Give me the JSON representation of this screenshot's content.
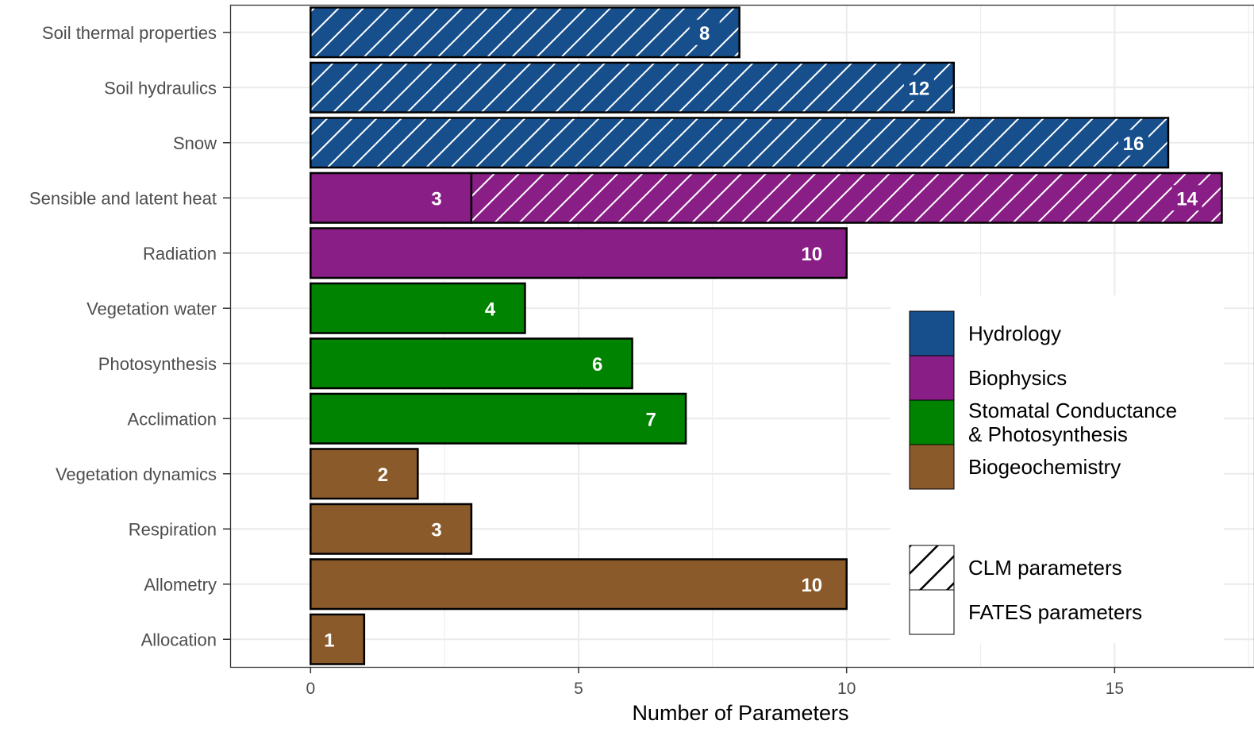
{
  "chart_data": {
    "type": "bar",
    "orientation": "horizontal",
    "stacked": true,
    "xlabel": "Number of Parameters",
    "ylabel": "",
    "xlim": [
      -1.5,
      17.6
    ],
    "xticks": [
      0,
      5,
      10,
      15
    ],
    "grid": true,
    "legend_position": "right",
    "categories": [
      "Soil thermal properties",
      "Soil hydraulics",
      "Snow",
      "Sensible and latent heat",
      "Radiation",
      "Vegetation water",
      "Photosynthesis",
      "Acclimation",
      "Vegetation dynamics",
      "Respiration",
      "Allometry",
      "Allocation"
    ],
    "groups": [
      "Hydrology",
      "Hydrology",
      "Hydrology",
      "Biophysics",
      "Biophysics",
      "Stomatal Conductance & Photosynthesis",
      "Stomatal Conductance & Photosynthesis",
      "Stomatal Conductance & Photosynthesis",
      "Biogeochemistry",
      "Biogeochemistry",
      "Biogeochemistry",
      "Biogeochemistry"
    ],
    "series": [
      {
        "name": "FATES parameters",
        "pattern": "none",
        "values": [
          0,
          0,
          0,
          3,
          10,
          4,
          6,
          7,
          2,
          3,
          10,
          1
        ]
      },
      {
        "name": "CLM parameters",
        "pattern": "hatched",
        "values": [
          8,
          12,
          16,
          14,
          0,
          0,
          0,
          0,
          0,
          0,
          0,
          0
        ]
      }
    ],
    "group_legend": [
      {
        "name": "Hydrology",
        "color": "#164f8c"
      },
      {
        "name": "Biophysics",
        "color": "#8a1e87"
      },
      {
        "name": "Stomatal Conductance & Photosynthesis",
        "color": "#008300"
      },
      {
        "name": "Biogeochemistry",
        "color": "#8b5a2b"
      }
    ],
    "legend_lines": {
      "Hydrology": [
        "Hydrology"
      ],
      "Biophysics": [
        "Biophysics"
      ],
      "Stomatal Conductance & Photosynthesis": [
        "Stomatal Conductance",
        "& Photosynthesis"
      ],
      "Biogeochemistry": [
        "Biogeochemistry"
      ]
    },
    "pattern_legend": [
      {
        "name": "CLM parameters",
        "pattern": "hatched"
      },
      {
        "name": "FATES parameters",
        "pattern": "none"
      }
    ]
  }
}
